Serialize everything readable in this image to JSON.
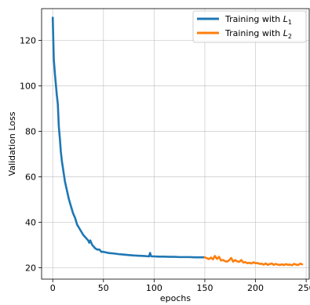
{
  "chart_data": {
    "type": "line",
    "title": "",
    "xlabel": "epochs",
    "ylabel": "Validation Loss",
    "xlim": [
      -11,
      253
    ],
    "ylim": [
      15,
      134
    ],
    "xticks": [
      0,
      50,
      100,
      150,
      200,
      250
    ],
    "yticks": [
      20,
      40,
      60,
      80,
      100,
      120
    ],
    "grid": true,
    "legend_position": "top-right",
    "series": [
      {
        "name": "Training with L1",
        "legend_base": "Training with ",
        "legend_sym": "L",
        "legend_sub": "1",
        "color": "#1f77b4",
        "x": [
          0,
          1,
          2,
          3,
          4,
          5,
          6,
          7,
          8,
          9,
          10,
          12,
          14,
          16,
          18,
          20,
          22,
          24,
          26,
          28,
          30,
          32,
          34,
          35,
          36,
          37,
          38,
          39,
          40,
          42,
          44,
          46,
          48,
          50,
          55,
          60,
          65,
          70,
          75,
          80,
          85,
          90,
          95,
          96,
          97,
          98,
          100,
          105,
          110,
          115,
          120,
          125,
          130,
          135,
          140,
          145,
          150
        ],
        "y": [
          130,
          112,
          106,
          101,
          96,
          92,
          82,
          77,
          71,
          67,
          64,
          58,
          54,
          50,
          47,
          44,
          42,
          39,
          37.5,
          36,
          34.5,
          33.5,
          32.5,
          32,
          31,
          32,
          31,
          30,
          29.5,
          28.5,
          28,
          28,
          27,
          27,
          26.5,
          26.3,
          26,
          25.8,
          25.6,
          25.4,
          25.3,
          25.2,
          25,
          26.5,
          25.1,
          25,
          25,
          24.9,
          24.9,
          24.8,
          24.8,
          24.7,
          24.7,
          24.7,
          24.6,
          24.6,
          24.6
        ]
      },
      {
        "name": "Training with L2",
        "legend_base": "Training with ",
        "legend_sym": "L",
        "legend_sub": "2",
        "color": "#ff7f0e",
        "x": [
          150,
          152,
          154,
          156,
          158,
          160,
          162,
          164,
          166,
          168,
          170,
          172,
          174,
          176,
          178,
          180,
          182,
          184,
          186,
          188,
          190,
          192,
          194,
          196,
          198,
          200,
          202,
          204,
          206,
          208,
          210,
          212,
          214,
          216,
          218,
          220,
          222,
          224,
          226,
          228,
          230,
          232,
          234,
          236,
          238,
          240,
          242,
          244,
          246
        ],
        "y": [
          24.6,
          24.2,
          23.8,
          24.5,
          23.7,
          25.2,
          23.9,
          24.8,
          23.2,
          23.4,
          22.9,
          22.7,
          23.3,
          24.3,
          22.7,
          23.4,
          22.8,
          22.6,
          23.4,
          22.3,
          22.5,
          22.0,
          22.2,
          21.9,
          22.4,
          22.0,
          22.1,
          21.7,
          21.8,
          21.4,
          21.9,
          21.3,
          21.6,
          21.9,
          21.3,
          21.7,
          21.4,
          21.2,
          21.5,
          21.2,
          21.6,
          21.3,
          21.4,
          21.1,
          21.7,
          21.4,
          21.2,
          21.8,
          21.5
        ]
      }
    ]
  }
}
